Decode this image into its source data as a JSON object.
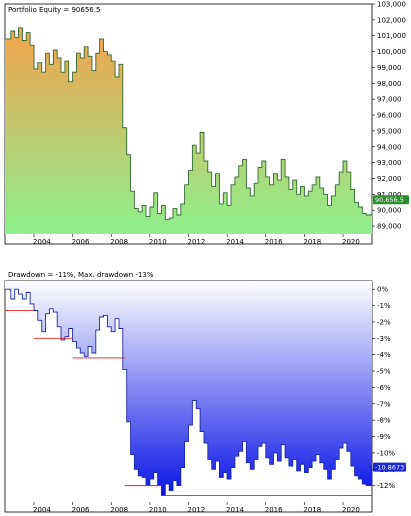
{
  "chart_data": [
    {
      "type": "area",
      "title": "Portfolio Equity = 90656.5",
      "ylim": [
        88500,
        103000
      ],
      "yticks": [
        "103,000",
        "102,000",
        "101,000",
        "100,000",
        "99,000",
        "98,000",
        "97,000",
        "96,000",
        "95,000",
        "94,000",
        "93,000",
        "92,000",
        "91,000",
        "90,000",
        "89,000"
      ],
      "ytick_values": [
        103000,
        102000,
        101000,
        100000,
        99000,
        98000,
        97000,
        96000,
        95000,
        94000,
        93000,
        92000,
        91000,
        90000,
        89000
      ],
      "xticks": [
        "2004",
        "2006",
        "2008",
        "2010",
        "2012",
        "2014",
        "2016",
        "2018",
        "2020"
      ],
      "xtick_values": [
        2004,
        2006,
        2008,
        2010,
        2012,
        2014,
        2016,
        2018,
        2020
      ],
      "xlim": [
        2002.5,
        2021.5
      ],
      "last_value_label": "90,656.5",
      "colors": {
        "fill_top": "#f2a24e",
        "fill_bottom": "#8ef08e",
        "line": "#2f6b2f",
        "label_bg": "#2e8b2e",
        "label_text": "#ffffff"
      },
      "series": [
        {
          "x": [
            2002.5,
            2002.8,
            2003.0,
            2003.2,
            2003.4,
            2003.6,
            2003.8,
            2004.0,
            2004.2,
            2004.4,
            2004.6,
            2004.8,
            2005.0,
            2005.2,
            2005.4,
            2005.6,
            2005.8,
            2006.0,
            2006.2,
            2006.4,
            2006.6,
            2006.8,
            2007.0,
            2007.2,
            2007.4,
            2007.6,
            2007.8,
            2008.0,
            2008.2,
            2008.4,
            2008.6,
            2008.8,
            2009.0,
            2009.2,
            2009.4,
            2009.6,
            2009.8,
            2010.0,
            2010.2,
            2010.4,
            2010.6,
            2010.8,
            2011.0,
            2011.2,
            2011.4,
            2011.6,
            2011.8,
            2012.0,
            2012.2,
            2012.4,
            2012.6,
            2012.8,
            2013.0,
            2013.2,
            2013.4,
            2013.6,
            2013.8,
            2014.0,
            2014.2,
            2014.4,
            2014.6,
            2014.8,
            2015.0,
            2015.2,
            2015.4,
            2015.6,
            2015.8,
            2016.0,
            2016.2,
            2016.4,
            2016.6,
            2016.8,
            2017.0,
            2017.2,
            2017.4,
            2017.6,
            2017.8,
            2018.0,
            2018.2,
            2018.4,
            2018.6,
            2018.8,
            2019.0,
            2019.2,
            2019.4,
            2019.6,
            2019.8,
            2020.0,
            2020.2,
            2020.4,
            2020.6,
            2020.8,
            2021.0,
            2021.2,
            2021.5
          ],
          "y": [
            100800,
            101300,
            100900,
            101500,
            100700,
            101200,
            100400,
            98900,
            99300,
            98700,
            99900,
            99200,
            100100,
            99600,
            98700,
            99400,
            98100,
            98700,
            99900,
            99600,
            100300,
            99700,
            98800,
            99900,
            100800,
            100000,
            99800,
            99400,
            98400,
            99200,
            95200,
            93500,
            91200,
            90100,
            89900,
            90300,
            89600,
            90200,
            91100,
            89800,
            90300,
            89400,
            89500,
            90100,
            89700,
            90400,
            91600,
            92500,
            94100,
            93600,
            94900,
            93100,
            92400,
            91500,
            92300,
            90400,
            91100,
            90300,
            91600,
            92100,
            92800,
            93200,
            91400,
            90900,
            91700,
            92700,
            93100,
            92100,
            91600,
            92300,
            91900,
            93200,
            92100,
            91300,
            91900,
            91000,
            91500,
            90900,
            91200,
            91600,
            92100,
            91400,
            91000,
            90300,
            90900,
            91600,
            92400,
            93100,
            92400,
            91300,
            90500,
            90200,
            89800,
            89700,
            90656.5
          ]
        }
      ]
    },
    {
      "type": "area",
      "title": "Drawdown = -11%, Max. drawdown -13%",
      "ylim": [
        -13,
        0.5
      ],
      "yticks": [
        "0%",
        "-1%",
        "-2%",
        "-3%",
        "-4%",
        "-5%",
        "-6%",
        "-7%",
        "-8%",
        "-9%",
        "-10%",
        "-11%",
        "-12%"
      ],
      "ytick_values": [
        0,
        -1,
        -2,
        -3,
        -4,
        -5,
        -6,
        -7,
        -8,
        -9,
        -10,
        -11,
        -12
      ],
      "xticks": [
        "2004",
        "2006",
        "2008",
        "2010",
        "2012",
        "2014",
        "2016",
        "2018",
        "2020"
      ],
      "xtick_values": [
        2004,
        2006,
        2008,
        2010,
        2012,
        2014,
        2016,
        2018,
        2020
      ],
      "xlim": [
        2002.5,
        2021.5
      ],
      "last_value_label": "-10.8673",
      "colors": {
        "fill_top": "#ffffff",
        "fill_bottom": "#0a14e6",
        "line": "#1a2aa8",
        "max_line": "#e02020",
        "label_bg": "#1a2ad8",
        "label_text": "#ffffff"
      },
      "series": [
        {
          "x": [
            2002.5,
            2002.8,
            2003.0,
            2003.2,
            2003.4,
            2003.6,
            2003.8,
            2004.0,
            2004.2,
            2004.4,
            2004.6,
            2004.8,
            2005.0,
            2005.2,
            2005.4,
            2005.6,
            2005.8,
            2006.0,
            2006.2,
            2006.4,
            2006.6,
            2006.8,
            2007.0,
            2007.2,
            2007.4,
            2007.6,
            2007.8,
            2008.0,
            2008.2,
            2008.4,
            2008.6,
            2008.8,
            2009.0,
            2009.2,
            2009.4,
            2009.6,
            2009.8,
            2010.0,
            2010.2,
            2010.4,
            2010.6,
            2010.8,
            2011.0,
            2011.2,
            2011.4,
            2011.6,
            2011.8,
            2012.0,
            2012.2,
            2012.4,
            2012.6,
            2012.8,
            2013.0,
            2013.2,
            2013.4,
            2013.6,
            2013.8,
            2014.0,
            2014.2,
            2014.4,
            2014.6,
            2014.8,
            2015.0,
            2015.2,
            2015.4,
            2015.6,
            2015.8,
            2016.0,
            2016.2,
            2016.4,
            2016.6,
            2016.8,
            2017.0,
            2017.2,
            2017.4,
            2017.6,
            2017.8,
            2018.0,
            2018.2,
            2018.4,
            2018.6,
            2018.8,
            2019.0,
            2019.2,
            2019.4,
            2019.6,
            2019.8,
            2020.0,
            2020.2,
            2020.4,
            2020.6,
            2020.8,
            2021.0,
            2021.2,
            2021.5
          ],
          "y": [
            0,
            -0.6,
            0,
            -0.3,
            -0.6,
            -0.2,
            -0.9,
            -1.3,
            -1.9,
            -2.6,
            -1.5,
            -1.2,
            -1.4,
            -2.3,
            -3.1,
            -2.9,
            -2.4,
            -3.2,
            -3.6,
            -3.9,
            -4.1,
            -3.5,
            -3.9,
            -2.5,
            -1.7,
            -1.6,
            -2.3,
            -2.6,
            -1.8,
            -2.4,
            -4.9,
            -8.1,
            -10.1,
            -11.0,
            -11.4,
            -11.5,
            -12.0,
            -11.6,
            -11.2,
            -12.0,
            -12.6,
            -11.9,
            -12.3,
            -11.7,
            -12.0,
            -10.9,
            -9.3,
            -8.3,
            -6.8,
            -7.3,
            -8.7,
            -9.4,
            -10.4,
            -11.0,
            -10.5,
            -11.5,
            -11.2,
            -11.6,
            -10.9,
            -10.2,
            -9.9,
            -9.3,
            -10.6,
            -11.0,
            -10.4,
            -9.6,
            -9.4,
            -10.3,
            -10.7,
            -10.0,
            -10.5,
            -9.5,
            -10.3,
            -10.8,
            -10.4,
            -11.1,
            -10.7,
            -11.2,
            -10.9,
            -10.5,
            -10.1,
            -10.6,
            -11.0,
            -11.6,
            -11.0,
            -10.4,
            -9.7,
            -9.4,
            -9.9,
            -10.8,
            -11.4,
            -11.6,
            -11.9,
            -12.0,
            -10.8673
          ]
        }
      ],
      "max_drawdown_levels": [
        {
          "from": 2002.5,
          "to": 2004.0,
          "y": -1.3
        },
        {
          "from": 2004.0,
          "to": 2006.0,
          "y": -3.0
        },
        {
          "from": 2006.0,
          "to": 2008.7,
          "y": -4.2
        },
        {
          "from": 2008.7,
          "to": 2010.6,
          "y": -12.0
        },
        {
          "from": 2010.6,
          "to": 2021.5,
          "y": -12.6
        }
      ]
    }
  ]
}
